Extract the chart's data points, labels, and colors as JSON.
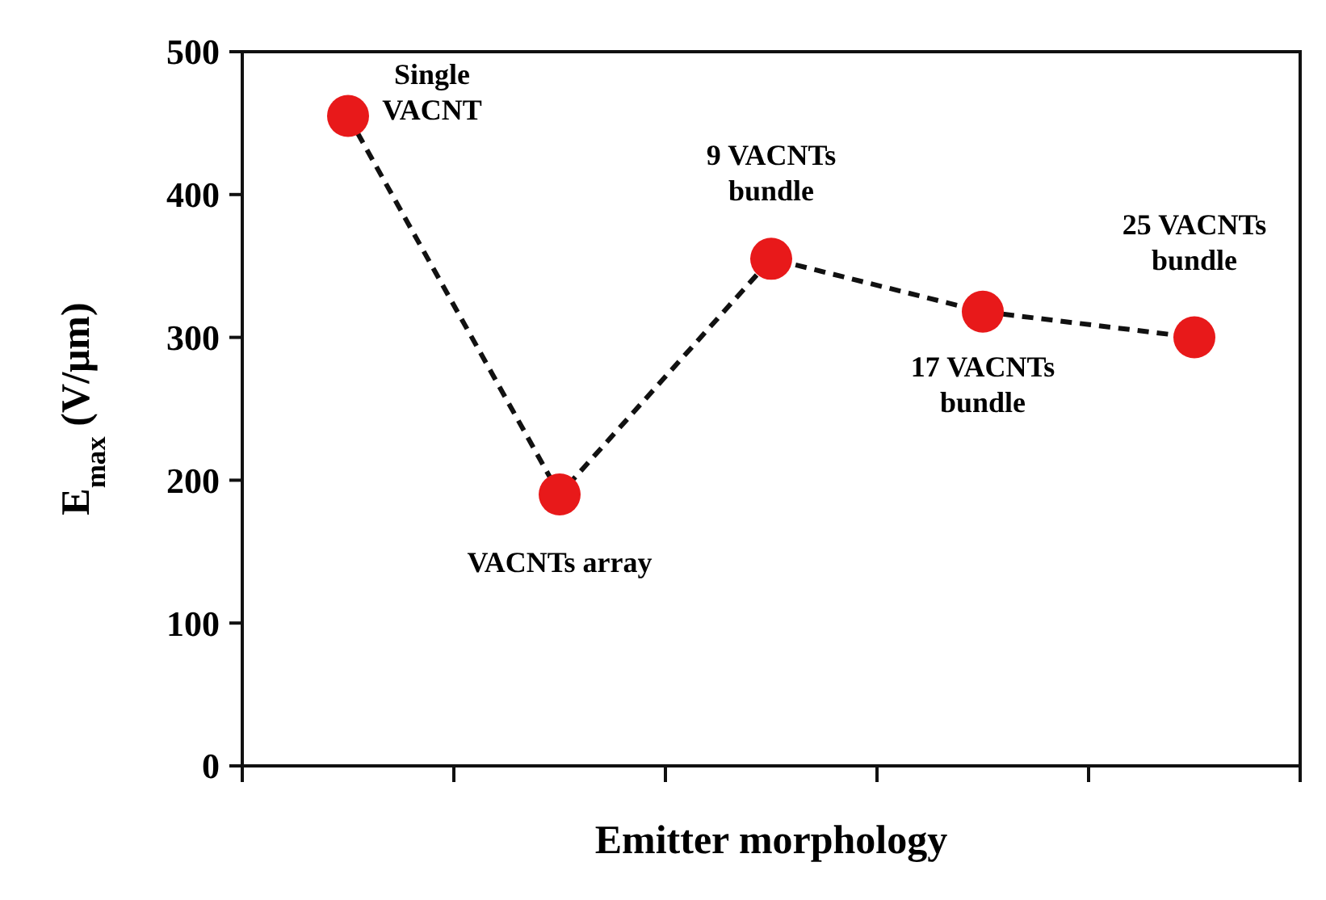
{
  "chart_data": {
    "type": "line",
    "xlabel": "Emitter morphology",
    "ylabel": "E$_{max}$ (V/μm)",
    "categories": [
      null,
      null,
      null,
      null,
      null
    ],
    "series": [
      {
        "color": "#111111",
        "colors": [
          "#e8191a",
          "#e8191a",
          "#e8191a",
          "#e8191a",
          "#e8191a"
        ],
        "values": [
          455,
          190,
          355,
          318,
          300
        ]
      }
    ],
    "ylim": [
      0,
      500
    ],
    "yticks": [
      0,
      100,
      200,
      300,
      400,
      500
    ],
    "marker": "circle",
    "line_style": "dashed",
    "grid": false,
    "annotations": [
      "Single VACNT",
      "VACNTs array",
      "9 VACNTs bundle",
      "17 VACNTs bundle",
      "25 VACNTs bundle"
    ]
  }
}
